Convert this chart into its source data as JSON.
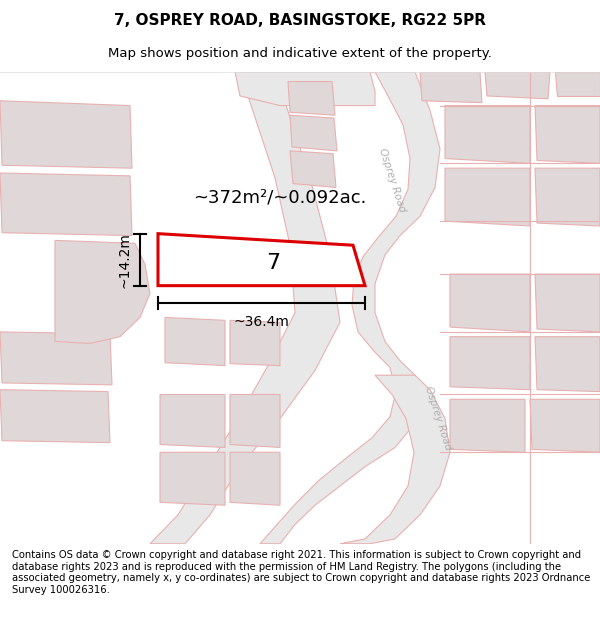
{
  "title_line1": "7, OSPREY ROAD, BASINGSTOKE, RG22 5PR",
  "title_line2": "Map shows position and indicative extent of the property.",
  "area_label": "~372m²/~0.092ac.",
  "width_label": "~36.4m",
  "height_label": "~14.2m",
  "property_number": "7",
  "footer_text": "Contains OS data © Crown copyright and database right 2021. This information is subject to Crown copyright and database rights 2023 and is reproduced with the permission of HM Land Registry. The polygons (including the associated geometry, namely x, y co-ordinates) are subject to Crown copyright and database rights 2023 Ordnance Survey 100026316.",
  "bg_color": "#ffffff",
  "map_bg_color": "#ffffff",
  "road_fill_color": "#e8e8e8",
  "road_outline_color": "#e8b0b0",
  "building_color": "#e0d8d8",
  "building_edge_color": "#e8b0b0",
  "property_outline_color": "#dd0000",
  "dim_line_color": "#000000",
  "road_label_color": "#b0b0b0",
  "area_label_fontsize": 13,
  "title_fontsize": 11,
  "subtitle_fontsize": 9.5,
  "footer_fontsize": 7.2,
  "number_fontsize": 16,
  "dim_fontsize": 10,
  "road_label_fontsize": 7.5
}
